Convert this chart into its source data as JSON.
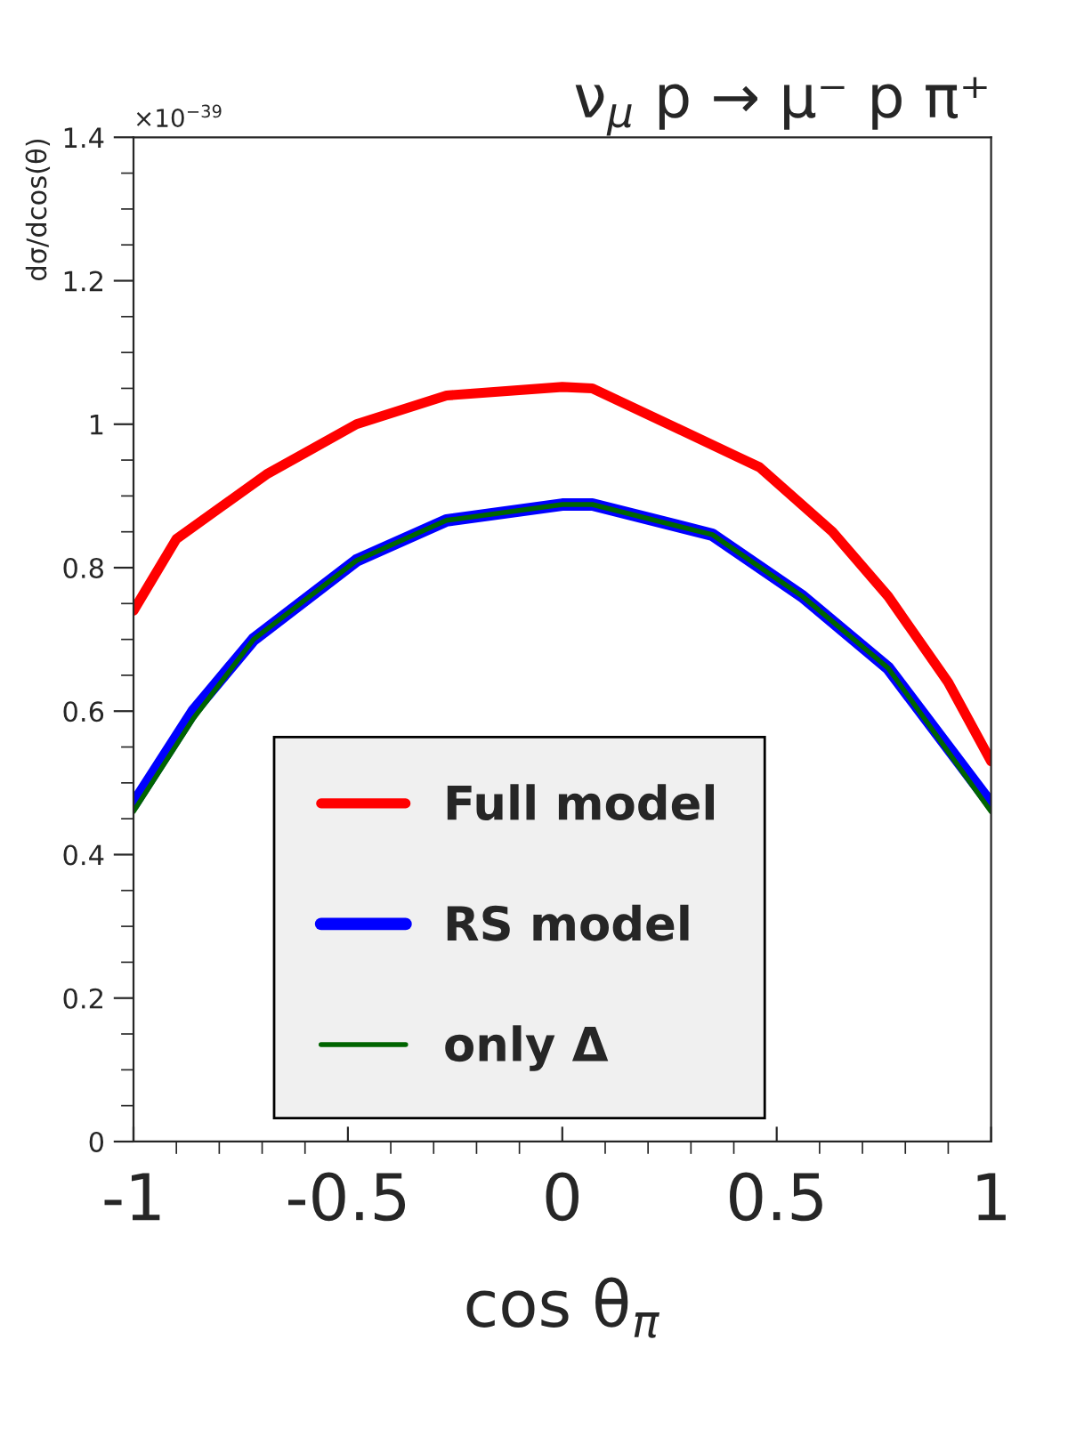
{
  "chart_data": {
    "type": "line",
    "title": "ν$_{μ}$ p → μ⁻ p π⁺",
    "xlabel": "cos θ$_{π}$",
    "ylabel": "dσ/dcos(θ)",
    "annotations": [
      "×10$^{−39}$"
    ],
    "xlim": [
      -1,
      1
    ],
    "xticks": [
      -1,
      -0.5,
      0,
      0.5,
      1
    ],
    "ylim": [
      0,
      1.4
    ],
    "yticks": [
      0,
      0.2,
      0.4,
      0.6,
      0.8,
      1,
      1.2,
      1.4
    ],
    "legend": "bottom",
    "grid": false,
    "line_style": "solid",
    "marker": "none",
    "series": [
      {
        "name": "Full model",
        "color": "#ff0000",
        "x": [
          -1,
          -0.9,
          -0.69,
          -0.48,
          -0.27,
          0,
          0.07,
          0.46,
          0.63,
          0.76,
          0.9,
          1
        ],
        "values": [
          0.74,
          0.84,
          0.93,
          1.0,
          1.04,
          1.052,
          1.05,
          0.94,
          0.85,
          0.76,
          0.64,
          0.53
        ]
      },
      {
        "name": "RS model",
        "color": "#0000ff",
        "x": [
          -1,
          -0.86,
          -0.72,
          -0.48,
          -0.27,
          0,
          0.07,
          0.35,
          0.56,
          0.76,
          1
        ],
        "values": [
          0.47,
          0.6,
          0.7,
          0.81,
          0.866,
          0.888,
          0.888,
          0.846,
          0.76,
          0.66,
          0.47
        ]
      },
      {
        "name": "only Δ",
        "color": "#006400",
        "x": [
          -1,
          -0.86,
          -0.72,
          -0.48,
          -0.27,
          0,
          0.07,
          0.35,
          0.56,
          0.76,
          1
        ],
        "values": [
          0.46,
          0.59,
          0.7,
          0.81,
          0.866,
          0.888,
          0.888,
          0.846,
          0.76,
          0.66,
          0.46
        ]
      }
    ]
  }
}
